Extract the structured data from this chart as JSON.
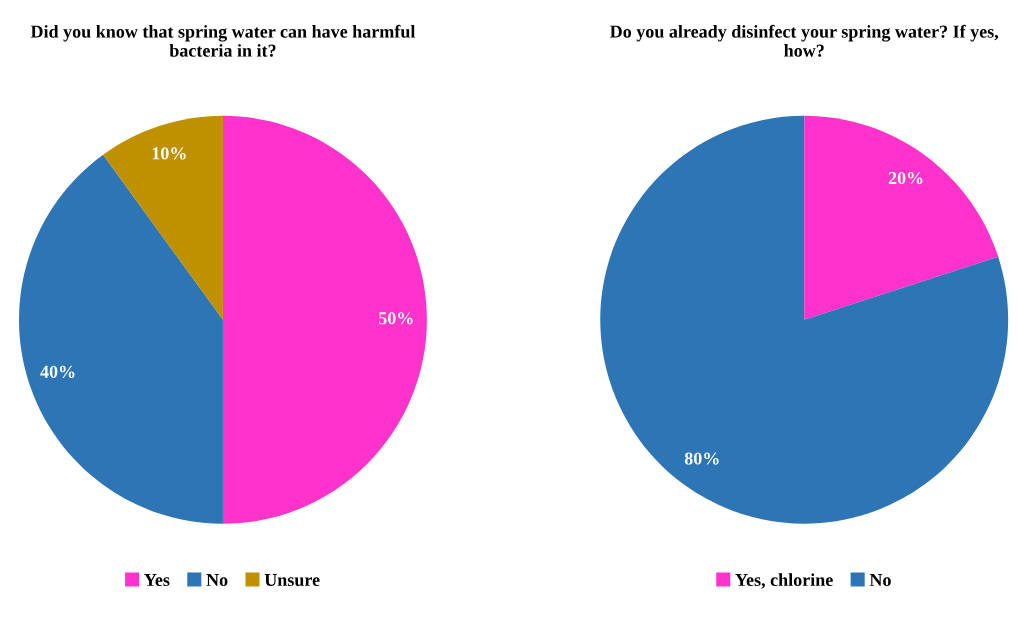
{
  "chart_data": [
    {
      "type": "pie",
      "title": "Did you know that spring water can have harmful bacteria in it?",
      "categories": [
        "Yes",
        "No",
        "Unsure"
      ],
      "values": [
        50,
        40,
        10
      ],
      "colors": [
        "#ff33cc",
        "#2e75b6",
        "#bf9000"
      ],
      "value_labels": [
        "50%",
        "40%",
        "10%"
      ],
      "legend": "bottom"
    },
    {
      "type": "pie",
      "title": "Do you already disinfect your spring water? If yes, how?",
      "categories": [
        "Yes, chlorine",
        "No"
      ],
      "values": [
        20,
        80
      ],
      "colors": [
        "#ff33cc",
        "#2e75b6"
      ],
      "value_labels": [
        "20%",
        "80%"
      ],
      "legend": "bottom"
    }
  ]
}
